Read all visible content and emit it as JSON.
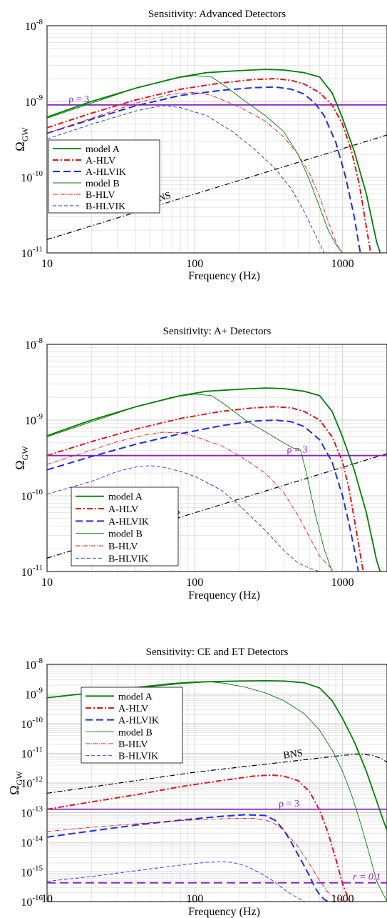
{
  "colors": {
    "green": "#008000",
    "red": "#e8121a",
    "blue": "#1f2fe0",
    "black": "#000000",
    "purple": "#8b1fc9",
    "grid": "#cfcfcf"
  },
  "chart_data": [
    {
      "type": "line",
      "title": "Sensitivity: Advanced Detectors",
      "xlabel": "Frequency (Hz)",
      "ylabel": "Ω",
      "ylabel_sub": "GW",
      "xscale": "log",
      "yscale": "log",
      "xlim": [
        10,
        2000
      ],
      "ylim": [
        1e-11,
        1e-08
      ],
      "grid": true,
      "legend_position": "left",
      "x_ticks": [
        {
          "value": 10,
          "label": "10"
        },
        {
          "value": 100,
          "label": "100"
        },
        {
          "value": 1000,
          "label": "1000"
        }
      ],
      "y_ticks": [
        {
          "value": 1e-11,
          "base": "10",
          "exp": "-11"
        },
        {
          "value": 1e-10,
          "base": "10",
          "exp": "-10"
        },
        {
          "value": 1e-09,
          "base": "10",
          "exp": "-9"
        },
        {
          "value": 1e-08,
          "base": "10",
          "exp": "-8"
        }
      ],
      "hlines": [
        {
          "label": "ρ = 3",
          "y": 9e-10,
          "color_key": "purple",
          "label_x": 14,
          "label_pos": "above",
          "dash": "solid"
        }
      ],
      "bns": {
        "label": "BNS",
        "x": [
          10,
          2000
        ],
        "y": [
          1.5e-11,
          3.6e-10
        ],
        "label_x": 52
      },
      "series": [
        {
          "name": "model A",
          "color_key": "green",
          "width": 1.8,
          "dash": "solid",
          "x": [
            10,
            20,
            40,
            80,
            120,
            200,
            300,
            400,
            550,
            700,
            850,
            1000,
            1200,
            1450,
            1700,
            1800
          ],
          "y": [
            6.2e-10,
            1e-09,
            1.5e-09,
            2.1e-09,
            2.4e-09,
            2.55e-09,
            2.65e-09,
            2.6e-09,
            2.4e-09,
            2.1e-09,
            1.3e-09,
            6e-10,
            2.2e-10,
            6e-11,
            1.4e-11,
            1e-11
          ]
        },
        {
          "name": "A-HLV",
          "color_key": "red",
          "width": 2.0,
          "dash": "8,3,2,3",
          "x": [
            10,
            20,
            40,
            80,
            150,
            250,
            350,
            450,
            550,
            700,
            850,
            1000,
            1150,
            1300,
            1450,
            1550
          ],
          "y": [
            4.5e-10,
            7e-10,
            1.05e-09,
            1.45e-09,
            1.75e-09,
            1.95e-09,
            2e-09,
            1.9e-09,
            1.7e-09,
            1.3e-09,
            9e-10,
            5e-10,
            2.2e-10,
            8e-11,
            2.2e-11,
            1e-11
          ]
        },
        {
          "name": "A-HLVIK",
          "color_key": "blue",
          "width": 2.0,
          "dash": "10,5",
          "x": [
            10,
            20,
            40,
            80,
            150,
            250,
            350,
            450,
            550,
            650,
            750,
            900,
            1050,
            1200,
            1320
          ],
          "y": [
            3.8e-10,
            5.8e-10,
            8.8e-10,
            1.2e-09,
            1.4e-09,
            1.52e-09,
            1.55e-09,
            1.45e-09,
            1.25e-09,
            9.5e-10,
            6.5e-10,
            2.9e-10,
            1e-10,
            3e-11,
            1e-11
          ]
        },
        {
          "name": "model B",
          "color_key": "green",
          "width": 0.9,
          "dash": "solid",
          "x": [
            10,
            20,
            40,
            70,
            100,
            130,
            160,
            220,
            300,
            400,
            500,
            600,
            700,
            800,
            900,
            1000
          ],
          "y": [
            6e-10,
            9.5e-10,
            1.5e-09,
            2e-09,
            2.2e-09,
            2.1e-09,
            1.6e-09,
            1e-09,
            6.5e-10,
            4e-10,
            2e-10,
            9e-11,
            4e-11,
            2e-11,
            1.3e-11,
            1e-11
          ]
        },
        {
          "name": "B-HLV",
          "color_key": "red",
          "width": 0.9,
          "dash": "6,2,1,2",
          "x": [
            10,
            20,
            40,
            70,
            100,
            130,
            200,
            300,
            400,
            500,
            600,
            700,
            800,
            900,
            980
          ],
          "y": [
            3.8e-10,
            6e-10,
            9.5e-10,
            1.25e-09,
            1.32e-09,
            1.2e-09,
            8.5e-10,
            5.5e-10,
            3.4e-10,
            2e-10,
            1.1e-10,
            5.5e-11,
            2.6e-11,
            1.4e-11,
            1e-11
          ]
        },
        {
          "name": "B-HLVIK",
          "color_key": "blue",
          "width": 0.9,
          "dash": "5,3",
          "x": [
            10,
            20,
            40,
            60,
            80,
            120,
            180,
            250,
            350,
            450,
            550,
            650,
            750
          ],
          "y": [
            3.2e-10,
            5e-10,
            7.5e-10,
            8.8e-10,
            8.3e-10,
            6.5e-10,
            4e-10,
            2.4e-10,
            1.3e-10,
            7e-11,
            3.5e-11,
            1.8e-11,
            1e-11
          ]
        }
      ]
    },
    {
      "type": "line",
      "title": "Sensitivity: A+ Detectors",
      "xlabel": "Frequency (Hz)",
      "ylabel": "Ω",
      "ylabel_sub": "GW",
      "xscale": "log",
      "yscale": "log",
      "xlim": [
        10,
        2000
      ],
      "ylim": [
        1e-11,
        1e-08
      ],
      "grid": true,
      "legend_position": "bottom-left",
      "x_ticks": [
        {
          "value": 10,
          "label": "10"
        },
        {
          "value": 100,
          "label": "100"
        },
        {
          "value": 1000,
          "label": "1000"
        }
      ],
      "y_ticks": [
        {
          "value": 1e-11,
          "base": "10",
          "exp": "-11"
        },
        {
          "value": 1e-10,
          "base": "10",
          "exp": "-10"
        },
        {
          "value": 1e-09,
          "base": "10",
          "exp": "-9"
        },
        {
          "value": 1e-08,
          "base": "10",
          "exp": "-8"
        }
      ],
      "hlines": [
        {
          "label": "ρ = 3",
          "y": 3.4e-10,
          "color_key": "purple",
          "label_x": 420,
          "label_pos": "above",
          "dash": "solid"
        }
      ],
      "bns": {
        "label": "BNS",
        "x": [
          10,
          2000
        ],
        "y": [
          1.5e-11,
          3.6e-10
        ],
        "label_x": 60
      },
      "series": [
        {
          "name": "model A",
          "color_key": "green",
          "width": 1.8,
          "dash": "solid",
          "x": [
            10,
            20,
            40,
            80,
            120,
            200,
            300,
            400,
            550,
            700,
            850,
            1000,
            1200,
            1450,
            1700,
            1800
          ],
          "y": [
            6.2e-10,
            1e-09,
            1.5e-09,
            2.1e-09,
            2.4e-09,
            2.55e-09,
            2.65e-09,
            2.6e-09,
            2.4e-09,
            2.1e-09,
            1.3e-09,
            6e-10,
            2.2e-10,
            6e-11,
            1.4e-11,
            1e-11
          ]
        },
        {
          "name": "A-HLV",
          "color_key": "red",
          "width": 2.0,
          "dash": "8,3,2,3",
          "x": [
            10,
            20,
            40,
            80,
            150,
            250,
            350,
            450,
            550,
            700,
            850,
            1000,
            1100,
            1200,
            1300,
            1380
          ],
          "y": [
            3.4e-10,
            5.2e-10,
            7.6e-10,
            1.05e-09,
            1.3e-09,
            1.45e-09,
            1.5e-09,
            1.45e-09,
            1.3e-09,
            1e-09,
            6e-10,
            2.8e-10,
            1.3e-10,
            5e-11,
            2e-11,
            1e-11
          ]
        },
        {
          "name": "A-HLVIK",
          "color_key": "blue",
          "width": 2.0,
          "dash": "10,5",
          "x": [
            10,
            20,
            40,
            80,
            150,
            250,
            350,
            450,
            550,
            700,
            850,
            1000,
            1100,
            1200,
            1280
          ],
          "y": [
            2.2e-10,
            3.3e-10,
            4.8e-10,
            6.6e-10,
            8.4e-10,
            9.7e-10,
            1e-09,
            9.5e-10,
            8.2e-10,
            5.5e-10,
            2.8e-10,
            1e-10,
            4.5e-11,
            2e-11,
            1e-11
          ]
        },
        {
          "name": "model B",
          "color_key": "green",
          "width": 0.9,
          "dash": "solid",
          "x": [
            10,
            20,
            40,
            70,
            100,
            130,
            160,
            220,
            300,
            400,
            470,
            520,
            560,
            650,
            750,
            850
          ],
          "y": [
            6e-10,
            9.5e-10,
            1.5e-09,
            2e-09,
            2.2e-09,
            2.1e-09,
            1.6e-09,
            1e-09,
            7e-10,
            5e-10,
            4.2e-10,
            4e-10,
            2.3e-10,
            6e-11,
            2e-11,
            1e-11
          ]
        },
        {
          "name": "B-HLV",
          "color_key": "red",
          "width": 0.9,
          "dash": "6,2,1,2",
          "x": [
            10,
            20,
            30,
            45,
            60,
            80,
            100,
            150,
            200,
            300,
            400,
            500,
            600,
            700,
            800,
            880
          ],
          "y": [
            2.6e-10,
            4e-10,
            5.2e-10,
            6.3e-10,
            6.9e-10,
            6.8e-10,
            6.1e-10,
            4.6e-10,
            3.4e-10,
            2e-10,
            1.1e-10,
            5.5e-11,
            2.8e-11,
            1.6e-11,
            1.2e-11,
            1e-11
          ]
        },
        {
          "name": "B-HLVIK",
          "color_key": "blue",
          "width": 0.9,
          "dash": "5,3",
          "x": [
            10,
            20,
            30,
            40,
            50,
            60,
            80,
            100,
            150,
            200,
            300,
            400,
            500,
            600,
            700
          ],
          "y": [
            1.05e-10,
            1.55e-10,
            2.1e-10,
            2.4e-10,
            2.5e-10,
            2.4e-10,
            2.1e-10,
            1.8e-10,
            1.2e-10,
            7.5e-11,
            3.5e-11,
            1.9e-11,
            1.3e-11,
            1.1e-11,
            1e-11
          ]
        }
      ]
    },
    {
      "type": "line",
      "title": "Sensitivity: CE and ET Detectors",
      "xlabel": "Frequency (Hz)",
      "ylabel": "Ω",
      "ylabel_sub": "GW",
      "xscale": "log",
      "yscale": "log",
      "xlim": [
        10,
        2000
      ],
      "ylim": [
        1e-16,
        1e-08
      ],
      "grid": true,
      "legend_position": "top-left",
      "x_ticks": [
        {
          "value": 10,
          "label": "10"
        },
        {
          "value": 100,
          "label": "100"
        },
        {
          "value": 1000,
          "label": "1000"
        }
      ],
      "y_ticks": [
        {
          "value": 1e-16,
          "base": "10",
          "exp": "-16"
        },
        {
          "value": 1e-15,
          "base": "10",
          "exp": "-15"
        },
        {
          "value": 1e-14,
          "base": "10",
          "exp": "-14"
        },
        {
          "value": 1e-13,
          "base": "10",
          "exp": "-13"
        },
        {
          "value": 1e-12,
          "base": "10",
          "exp": "-12"
        },
        {
          "value": 1e-11,
          "base": "10",
          "exp": "-11"
        },
        {
          "value": 1e-10,
          "base": "10",
          "exp": "-10"
        },
        {
          "value": 1e-09,
          "base": "10",
          "exp": "-9"
        },
        {
          "value": 1e-08,
          "base": "10",
          "exp": "-8"
        }
      ],
      "hlines": [
        {
          "label": "ρ = 3",
          "y": 1.3e-13,
          "color_key": "purple",
          "label_x": 370,
          "label_pos": "above",
          "dash": "solid"
        },
        {
          "label": "r = 0.1",
          "y": 4.3e-16,
          "color_key": "purple",
          "label_x": 1600,
          "label_pos": "above",
          "dash": "12,6",
          "italic": true
        }
      ],
      "bns": {
        "label": "BNS",
        "x": [
          10,
          100,
          1000,
          1300,
          1600,
          1850,
          2000
        ],
        "y": [
          4.5e-13,
          2.3e-12,
          8.5e-12,
          9.5e-12,
          8.5e-12,
          6.5e-12,
          5e-12
        ],
        "label_x": 400
      },
      "series": [
        {
          "name": "model A",
          "color_key": "green",
          "width": 1.8,
          "dash": "solid",
          "x": [
            10,
            20,
            40,
            80,
            120,
            200,
            300,
            400,
            550,
            700,
            850,
            1000,
            1200,
            1450,
            1700,
            1900,
            2000
          ],
          "y": [
            7.5e-10,
            1.1e-09,
            1.6e-09,
            2.3e-09,
            2.6e-09,
            2.75e-09,
            2.8e-09,
            2.75e-09,
            2.4e-09,
            1.6e-09,
            6e-10,
            1.5e-10,
            2.5e-11,
            2.5e-12,
            2.5e-13,
            5e-14,
            2.5e-14
          ]
        },
        {
          "name": "A-HLV",
          "color_key": "red",
          "width": 2.0,
          "dash": "8,3,2,3",
          "x": [
            10,
            20,
            40,
            80,
            150,
            250,
            330,
            400,
            500,
            600,
            700,
            800,
            900,
            1000,
            1080,
            1120
          ],
          "y": [
            1.3e-13,
            2.3e-13,
            4e-13,
            7.5e-13,
            1.2e-12,
            1.7e-12,
            1.85e-12,
            1.7e-12,
            1.2e-12,
            5e-13,
            1.2e-13,
            2e-14,
            2.8e-15,
            4e-16,
            1.5e-16,
            1e-16
          ]
        },
        {
          "name": "A-HLVIK",
          "color_key": "blue",
          "width": 2.0,
          "dash": "10,5",
          "x": [
            10,
            20,
            40,
            80,
            150,
            220,
            300,
            350,
            400,
            450,
            500,
            550,
            600,
            650,
            700,
            750,
            800
          ],
          "y": [
            1.5e-14,
            2.4e-14,
            3.8e-14,
            5.6e-14,
            7.5e-14,
            8.5e-14,
            8e-14,
            5.5e-14,
            2.6e-14,
            1e-14,
            3.8e-15,
            1.6e-15,
            7e-16,
            3e-16,
            1.7e-16,
            1.2e-16,
            1e-16
          ]
        },
        {
          "name": "model B",
          "color_key": "green",
          "width": 0.9,
          "dash": "solid",
          "x": [
            10,
            20,
            40,
            70,
            100,
            130,
            160,
            220,
            300,
            400,
            550,
            700,
            850,
            1000,
            1150,
            1300,
            1500,
            1700,
            2000
          ],
          "y": [
            7.5e-10,
            1.1e-09,
            1.7e-09,
            2.3e-09,
            2.6e-09,
            2.55e-09,
            2.3e-09,
            1.7e-09,
            1.1e-09,
            6e-10,
            2.2e-10,
            6e-11,
            1.3e-11,
            2.5e-12,
            4e-13,
            6e-14,
            5e-15,
            5e-16,
            1e-16
          ]
        },
        {
          "name": "B-HLV",
          "color_key": "red",
          "width": 0.9,
          "dash": "6,2,1,2",
          "x": [
            10,
            20,
            40,
            80,
            150,
            250,
            330,
            400,
            500,
            600,
            700,
            800,
            900,
            1000,
            1100
          ],
          "y": [
            2.3e-14,
            3.2e-14,
            4.2e-14,
            5.4e-14,
            6.2e-14,
            6.5e-14,
            5e-14,
            2.6e-14,
            7e-15,
            1.8e-15,
            5e-16,
            2e-16,
            1.4e-16,
            1.1e-16,
            1e-16
          ]
        },
        {
          "name": "B-HLVIK",
          "color_key": "blue",
          "width": 0.9,
          "dash": "5,3",
          "x": [
            10,
            20,
            40,
            80,
            120,
            150,
            180,
            220,
            280,
            350,
            420,
            500,
            560
          ],
          "y": [
            4.8e-16,
            7e-16,
            1.1e-15,
            1.7e-15,
            2.1e-15,
            2.2e-15,
            2.1e-15,
            1.6e-15,
            9e-16,
            4.5e-16,
            2.2e-16,
            1.3e-16,
            1e-16
          ]
        }
      ]
    }
  ]
}
